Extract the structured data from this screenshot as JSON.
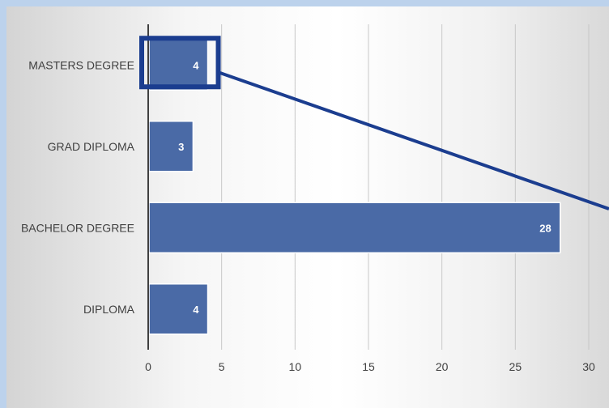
{
  "chart_data": {
    "type": "bar",
    "orientation": "horizontal",
    "categories": [
      "MASTERS DEGREE",
      "GRAD DIPLOMA",
      "BACHELOR DEGREE",
      "DIPLOMA"
    ],
    "values": [
      4,
      3,
      28,
      4
    ],
    "xlim": [
      0,
      30
    ],
    "xticks": [
      "0",
      "5",
      "10",
      "15",
      "20",
      "25",
      "30"
    ],
    "title": "",
    "xlabel": "",
    "ylabel": "",
    "grid": "vertical",
    "legend": "none",
    "highlighted_category": "MASTERS DEGREE"
  },
  "colors": {
    "bar": "#4a6aa6",
    "highlight": "#1b3d8f",
    "axis": "#404040",
    "grid": "#c8c8c8"
  }
}
